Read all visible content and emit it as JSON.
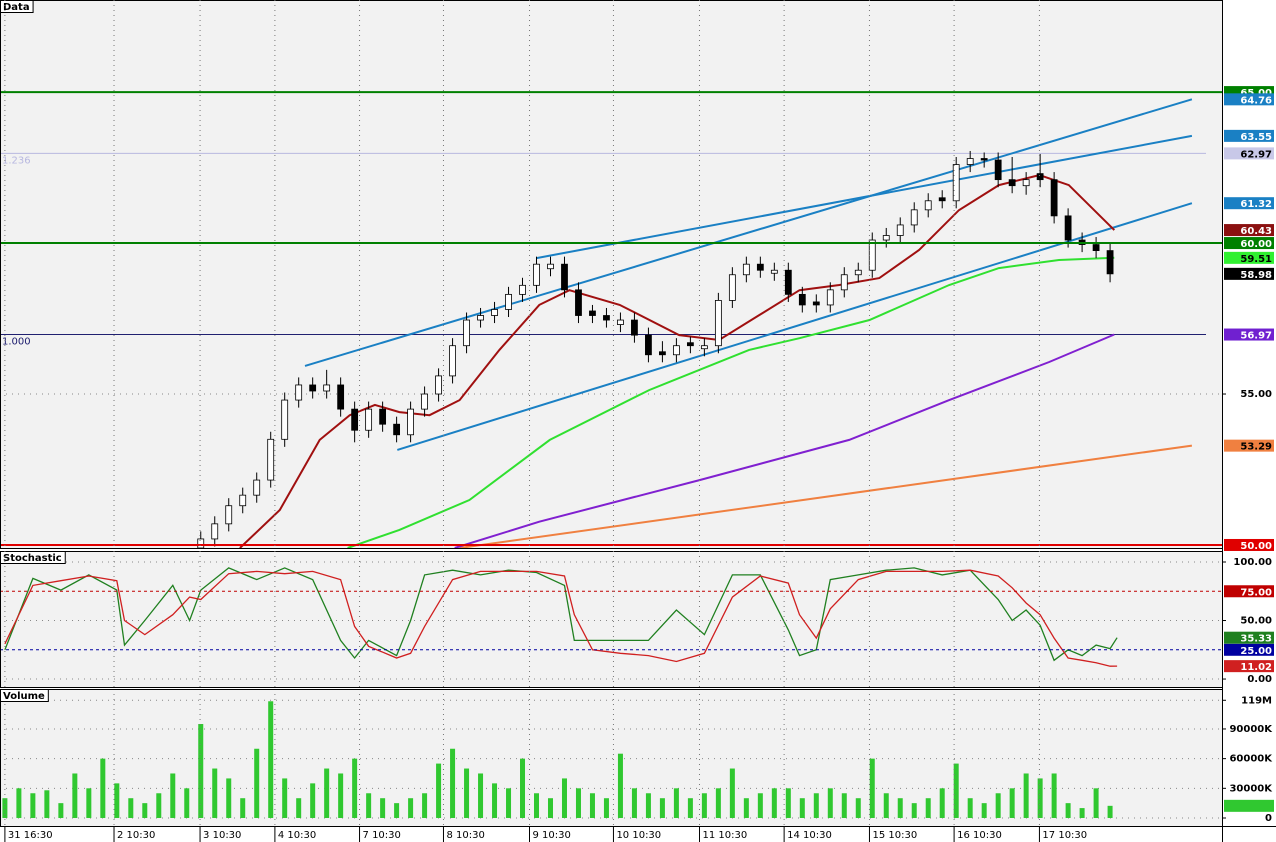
{
  "chart_data": [
    {
      "type": "candlestick",
      "title": "Data",
      "xlim": [
        -0.7,
        174
      ],
      "ylim": [
        49.9,
        68.05
      ],
      "yticks": [
        {
          "value": 55,
          "label": "55.00"
        }
      ],
      "grid": true,
      "x": [
        28,
        30,
        32,
        34,
        36,
        38,
        40,
        42,
        44,
        46,
        48,
        50,
        52,
        54,
        56,
        58,
        60,
        62,
        64,
        66,
        68,
        70,
        72,
        74,
        76,
        78,
        80,
        82,
        84,
        86,
        88,
        90,
        92,
        94,
        96,
        98,
        100,
        102,
        104,
        106,
        108,
        110,
        112,
        114,
        116,
        118,
        120,
        122,
        124,
        126,
        128,
        130,
        132,
        134,
        136,
        138,
        140,
        142,
        144,
        146,
        148,
        150,
        152,
        154,
        156,
        158
      ],
      "candles": [
        [
          49.9,
          50.45,
          49.7,
          50.2
        ],
        [
          50.2,
          50.95,
          49.95,
          50.7
        ],
        [
          50.7,
          51.55,
          50.45,
          51.3
        ],
        [
          51.3,
          51.9,
          51.05,
          51.65
        ],
        [
          51.65,
          52.4,
          51.4,
          52.15
        ],
        [
          52.15,
          53.75,
          51.9,
          53.5
        ],
        [
          53.5,
          55.05,
          53.25,
          54.8
        ],
        [
          54.8,
          55.55,
          54.55,
          55.3
        ],
        [
          55.3,
          55.55,
          54.85,
          55.1
        ],
        [
          55.1,
          55.8,
          54.85,
          55.3
        ],
        [
          55.3,
          55.55,
          54.25,
          54.5
        ],
        [
          54.5,
          54.75,
          53.4,
          53.8
        ],
        [
          53.8,
          54.75,
          53.55,
          54.5
        ],
        [
          54.5,
          54.75,
          53.75,
          54.0
        ],
        [
          54.0,
          54.25,
          53.4,
          53.65
        ],
        [
          53.65,
          54.75,
          53.4,
          54.5
        ],
        [
          54.5,
          55.25,
          54.25,
          55.0
        ],
        [
          55.0,
          55.85,
          54.75,
          55.6
        ],
        [
          55.6,
          56.85,
          55.35,
          56.6
        ],
        [
          56.6,
          57.7,
          56.35,
          57.45
        ],
        [
          57.45,
          57.85,
          57.2,
          57.6
        ],
        [
          57.6,
          58.05,
          57.35,
          57.8
        ],
        [
          57.8,
          58.55,
          57.55,
          58.3
        ],
        [
          58.3,
          58.85,
          58.05,
          58.6
        ],
        [
          58.6,
          59.55,
          58.35,
          59.3
        ],
        [
          59.15,
          59.55,
          58.9,
          59.3
        ],
        [
          59.3,
          59.55,
          58.2,
          58.45
        ],
        [
          58.45,
          58.7,
          57.35,
          57.6
        ],
        [
          57.75,
          57.95,
          57.35,
          57.6
        ],
        [
          57.6,
          57.85,
          57.2,
          57.45
        ],
        [
          57.3,
          57.7,
          57.05,
          57.45
        ],
        [
          57.45,
          57.7,
          56.7,
          56.95
        ],
        [
          56.95,
          57.2,
          56.05,
          56.3
        ],
        [
          56.4,
          56.75,
          56.05,
          56.3
        ],
        [
          56.3,
          56.85,
          56.05,
          56.6
        ],
        [
          56.7,
          56.9,
          56.35,
          56.6
        ],
        [
          56.5,
          56.85,
          56.25,
          56.6
        ],
        [
          56.6,
          58.35,
          56.35,
          58.1
        ],
        [
          58.1,
          59.2,
          57.85,
          58.95
        ],
        [
          58.95,
          59.55,
          58.7,
          59.3
        ],
        [
          59.3,
          59.55,
          58.85,
          59.1
        ],
        [
          59.0,
          59.35,
          58.75,
          59.1
        ],
        [
          59.1,
          59.35,
          58.05,
          58.3
        ],
        [
          58.3,
          58.55,
          57.7,
          57.95
        ],
        [
          58.05,
          58.3,
          57.7,
          57.95
        ],
        [
          57.95,
          58.7,
          57.7,
          58.45
        ],
        [
          58.45,
          59.2,
          58.2,
          58.95
        ],
        [
          58.95,
          59.35,
          58.7,
          59.1
        ],
        [
          59.1,
          60.35,
          58.85,
          60.1
        ],
        [
          60.1,
          60.5,
          59.85,
          60.25
        ],
        [
          60.25,
          60.85,
          60.0,
          60.6
        ],
        [
          60.6,
          61.35,
          60.35,
          61.1
        ],
        [
          61.1,
          61.65,
          60.85,
          61.4
        ],
        [
          61.5,
          61.75,
          61.15,
          61.4
        ],
        [
          61.4,
          62.85,
          61.15,
          62.6
        ],
        [
          62.6,
          63.05,
          62.35,
          62.8
        ],
        [
          62.8,
          63.0,
          62.5,
          62.75
        ],
        [
          62.75,
          63.0,
          61.85,
          62.1
        ],
        [
          62.1,
          62.85,
          61.65,
          61.9
        ],
        [
          61.9,
          62.35,
          61.6,
          62.1
        ],
        [
          62.3,
          62.95,
          61.85,
          62.1
        ],
        [
          62.1,
          62.35,
          60.65,
          60.9
        ],
        [
          60.9,
          61.15,
          59.85,
          60.1
        ],
        [
          60.1,
          60.35,
          59.7,
          59.95
        ],
        [
          59.95,
          60.2,
          59.5,
          59.75
        ],
        [
          59.75,
          60.0,
          58.7,
          58.98
        ]
      ],
      "hlines": [
        {
          "value": 65,
          "label": "65.00",
          "color": "#008000"
        },
        {
          "value": 60,
          "label": "60.00",
          "color": "#008000"
        },
        {
          "value": 50,
          "label": "50.00",
          "color": "#e00000"
        }
      ],
      "fib": [
        {
          "value": 62.97,
          "label": "1.236",
          "color": "#b8b8e0"
        },
        {
          "value": 56.97,
          "label": "1.000",
          "color": "#202070"
        }
      ],
      "lines": [
        {
          "color": "#1a80c4",
          "x": [
            42.9,
            169.7
          ],
          "values": [
            55.93,
            64.76
          ]
        },
        {
          "color": "#1a80c4",
          "x": [
            76,
            169.7
          ],
          "values": [
            59.5,
            63.55
          ]
        },
        {
          "color": "#1a80c4",
          "x": [
            56.1,
            169.7
          ],
          "values": [
            53.15,
            61.32
          ]
        },
        {
          "color": "#f08040",
          "x": [
            65,
            169.7
          ],
          "values": [
            49.9,
            53.29
          ]
        },
        {
          "color": "#8020d0",
          "x": [
            64.3,
            76.4,
            99.3,
            120.7,
            135,
            149.3,
            158.6
          ],
          "values": [
            49.9,
            50.77,
            52.15,
            53.48,
            54.8,
            56.06,
            56.97
          ]
        },
        {
          "color": "#30e030",
          "x": [
            49,
            56.4,
            66.4,
            77.9,
            92.1,
            106.4,
            113.6,
            123.6,
            135,
            142.1,
            150.7,
            158.6
          ],
          "values": [
            49.9,
            50.5,
            51.49,
            53.48,
            55.13,
            56.46,
            56.85,
            57.45,
            58.61,
            59.17,
            59.44,
            59.51
          ]
        },
        {
          "color": "#a01010",
          "x": [
            33.6,
            39.3,
            45,
            49.3,
            52.9,
            56.4,
            60.7,
            65,
            70.7,
            76.4,
            80.7,
            87.9,
            96.4,
            102.1,
            107.9,
            113.6,
            119.3,
            125,
            130.7,
            136.4,
            142.1,
            147.9,
            152.1,
            158.6
          ],
          "values": [
            49.9,
            51.16,
            53.48,
            54.3,
            54.64,
            54.4,
            54.3,
            54.8,
            56.46,
            57.95,
            58.44,
            57.95,
            56.95,
            56.79,
            57.62,
            58.44,
            58.61,
            58.84,
            59.77,
            61.09,
            61.92,
            62.25,
            61.92,
            60.43
          ]
        }
      ],
      "markers": [
        {
          "value": 64.76,
          "color": "#1a80c4"
        },
        {
          "value": 63.55,
          "color": "#1a80c4"
        },
        {
          "value": 62.97,
          "color": "#c8c8e8"
        },
        {
          "value": 61.32,
          "color": "#1a80c4"
        },
        {
          "value": 60.43,
          "color": "#8b1010"
        },
        {
          "value": 59.51,
          "color": "#30f030"
        },
        {
          "value": 58.98,
          "color": "#000000"
        },
        {
          "value": 56.97,
          "color": "#7020d0"
        },
        {
          "value": 53.29,
          "color": "#f08040"
        }
      ]
    },
    {
      "type": "line",
      "title": "Stochastic",
      "xlim": [
        -0.7,
        174
      ],
      "ylim": [
        -6.8,
        109.4
      ],
      "yticks": [
        {
          "value": 100,
          "label": "100.00"
        },
        {
          "value": 50,
          "label": "50.00"
        },
        {
          "value": 0,
          "label": "0.00"
        }
      ],
      "levels": [
        {
          "value": 75,
          "label": "75.00",
          "color": "#c00000"
        },
        {
          "value": 25,
          "label": "25.00",
          "color": "#0000a0"
        }
      ],
      "x": [
        0,
        4,
        8,
        12,
        16,
        17.1,
        20,
        24,
        26.4,
        28,
        32,
        36,
        40,
        44,
        48,
        50,
        52,
        56,
        58,
        60,
        64,
        68,
        72,
        76,
        80,
        81.4,
        84,
        88,
        92,
        96,
        100,
        104,
        108,
        112,
        113.6,
        116,
        118,
        122,
        126,
        130,
        134,
        138,
        142,
        144,
        146,
        148,
        150,
        152,
        154,
        156,
        158,
        159
      ],
      "series": [
        {
          "color": "#208020",
          "values": [
            25,
            86,
            76,
            89,
            76,
            29,
            50,
            80,
            50,
            76,
            95,
            85,
            95,
            85,
            33,
            18,
            33,
            20,
            50,
            89,
            93,
            89,
            93,
            91,
            80,
            33,
            33,
            33,
            33,
            59,
            38,
            89,
            89,
            42,
            20,
            25,
            85,
            89,
            93,
            95,
            89,
            93,
            68,
            50,
            59,
            46,
            16,
            25,
            20,
            29,
            26,
            35.33
          ]
        },
        {
          "color": "#d02020",
          "values": [
            30,
            80,
            84,
            88,
            84,
            50,
            38,
            55,
            70,
            68,
            90,
            92,
            90,
            92,
            85,
            45,
            28,
            18,
            22,
            45,
            85,
            92,
            92,
            92,
            88,
            55,
            25,
            22,
            20,
            15,
            22,
            70,
            88,
            82,
            55,
            35,
            60,
            85,
            92,
            92,
            92,
            93,
            88,
            78,
            65,
            55,
            35,
            18,
            16,
            14,
            11,
            11.02
          ]
        }
      ]
    },
    {
      "type": "bar",
      "title": "Volume",
      "color": "#30c830",
      "xlim": [
        -0.7,
        174
      ],
      "ylim": [
        -8100,
        130400
      ],
      "yticks": [
        {
          "value": 119000,
          "label": "119M"
        },
        {
          "value": 90000,
          "label": "90000K"
        },
        {
          "value": 60000,
          "label": "60000K"
        },
        {
          "value": 30000,
          "label": "30000K"
        },
        0
      ],
      "xticks": [
        {
          "value": 0,
          "label": "31 16:30"
        },
        {
          "value": 15.6,
          "label": "2 10:30"
        },
        {
          "value": 27.9,
          "label": "3 10:30"
        },
        {
          "value": 38.6,
          "label": "4 10:30"
        },
        {
          "value": 50.7,
          "label": "7 10:30"
        },
        {
          "value": 62.7,
          "label": "8 10:30"
        },
        {
          "value": 75,
          "label": "9 10:30"
        },
        {
          "value": 87,
          "label": "10 10:30"
        },
        {
          "value": 99.3,
          "label": "11 10:30"
        },
        {
          "value": 111.4,
          "label": "14 10:30"
        },
        {
          "value": 123.6,
          "label": "15 10:30"
        },
        {
          "value": 135.7,
          "label": "16 10:30"
        },
        {
          "value": 147.9,
          "label": "17 10:30"
        }
      ],
      "x": [
        0,
        2,
        4,
        6,
        8,
        10,
        12,
        14,
        16,
        18,
        20,
        22,
        24,
        26,
        28,
        30,
        32,
        34,
        36,
        38,
        40,
        42,
        44,
        46,
        48,
        50,
        52,
        54,
        56,
        58,
        60,
        62,
        64,
        66,
        68,
        70,
        72,
        74,
        76,
        78,
        80,
        82,
        84,
        86,
        88,
        90,
        92,
        94,
        96,
        98,
        100,
        102,
        104,
        106,
        108,
        110,
        112,
        114,
        116,
        118,
        120,
        122,
        124,
        126,
        128,
        130,
        132,
        134,
        136,
        138,
        140,
        142,
        144,
        146,
        148,
        150,
        152,
        154,
        156,
        158
      ],
      "values": [
        20000,
        30000,
        25000,
        28000,
        15000,
        45000,
        30000,
        60000,
        35000,
        20000,
        15000,
        25000,
        45000,
        30000,
        95000,
        50000,
        40000,
        20000,
        70000,
        118000,
        40000,
        20000,
        35000,
        50000,
        45000,
        60000,
        25000,
        20000,
        15000,
        20000,
        25000,
        55000,
        70000,
        50000,
        45000,
        35000,
        30000,
        60000,
        25000,
        20000,
        40000,
        30000,
        25000,
        20000,
        65000,
        30000,
        25000,
        20000,
        30000,
        20000,
        25000,
        30000,
        50000,
        20000,
        25000,
        30000,
        30000,
        20000,
        25000,
        30000,
        25000,
        20000,
        60000,
        25000,
        20000,
        15000,
        20000,
        30000,
        55000,
        20000,
        15000,
        25000,
        30000,
        45000,
        40000,
        45000,
        15000,
        10000,
        30000,
        12290
      ],
      "markers": [
        {
          "value": 12290,
          "label": "12290K",
          "color": "#30c830"
        }
      ]
    }
  ]
}
